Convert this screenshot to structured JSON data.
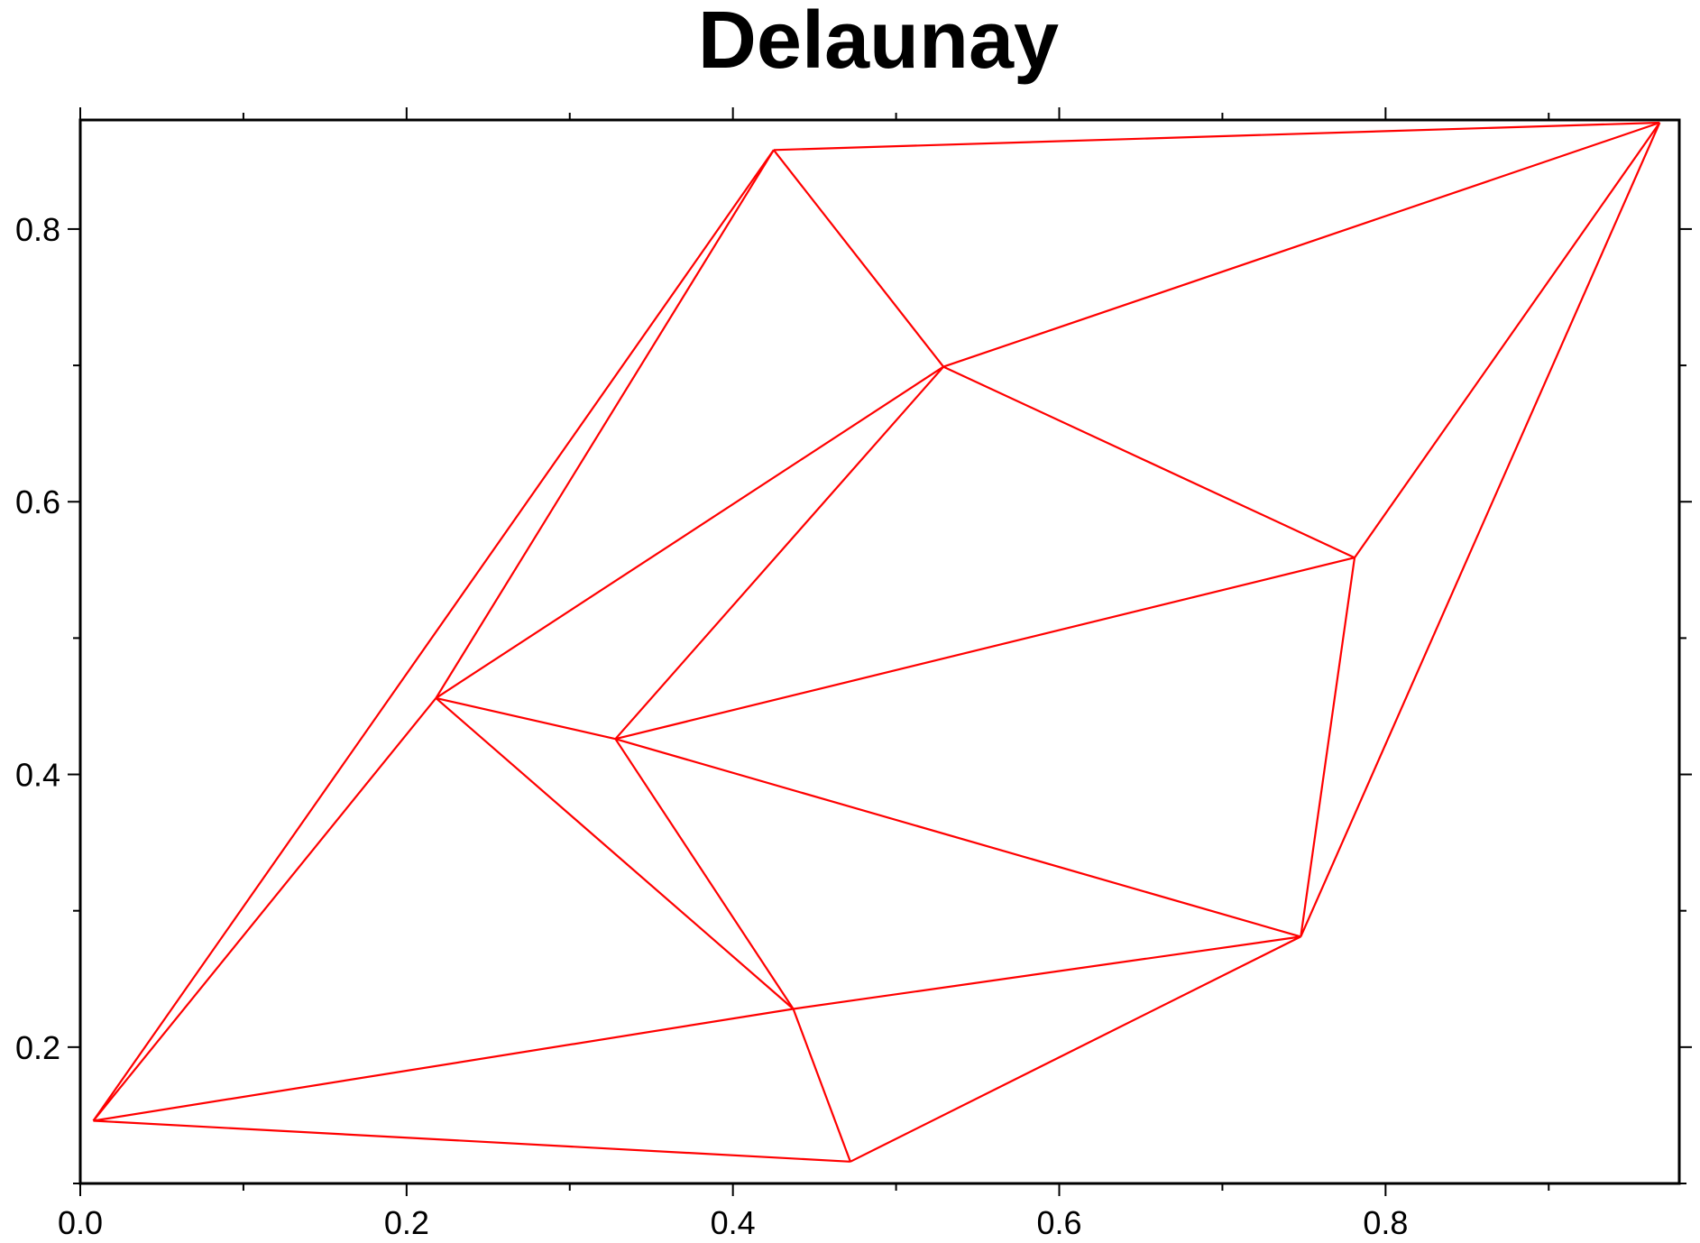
{
  "colors": {
    "edge": "#ff0000",
    "frame": "#000000",
    "background": "#ffffff"
  },
  "chart_data": {
    "type": "scatter",
    "title": "Delaunay",
    "xlabel": "",
    "ylabel": "",
    "xlim": [
      0.0,
      0.98
    ],
    "ylim": [
      0.1,
      0.88
    ],
    "grid": false,
    "frame": "boxed",
    "x_ticks": [
      {
        "value": 0.0,
        "label": "0.0"
      },
      {
        "value": 0.2,
        "label": "0.2"
      },
      {
        "value": 0.4,
        "label": "0.4"
      },
      {
        "value": 0.6,
        "label": "0.6"
      },
      {
        "value": 0.8,
        "label": "0.8"
      }
    ],
    "x_minor_ticks": [
      0.1,
      0.3,
      0.5,
      0.7,
      0.9
    ],
    "y_ticks": [
      {
        "value": 0.2,
        "label": "0.2"
      },
      {
        "value": 0.4,
        "label": "0.4"
      },
      {
        "value": 0.6,
        "label": "0.6"
      },
      {
        "value": 0.8,
        "label": "0.8"
      }
    ],
    "y_minor_ticks": [
      0.1,
      0.3,
      0.5,
      0.7
    ],
    "points": [
      {
        "id": "A",
        "x": 0.008,
        "y": 0.146
      },
      {
        "id": "B",
        "x": 0.425,
        "y": 0.858
      },
      {
        "id": "C",
        "x": 0.968,
        "y": 0.878
      },
      {
        "id": "D",
        "x": 0.529,
        "y": 0.699
      },
      {
        "id": "E",
        "x": 0.218,
        "y": 0.456
      },
      {
        "id": "F",
        "x": 0.328,
        "y": 0.426
      },
      {
        "id": "G",
        "x": 0.781,
        "y": 0.559
      },
      {
        "id": "H",
        "x": 0.748,
        "y": 0.281
      },
      {
        "id": "I",
        "x": 0.437,
        "y": 0.228
      },
      {
        "id": "J",
        "x": 0.472,
        "y": 0.116
      }
    ],
    "edges": [
      [
        "A",
        "B"
      ],
      [
        "A",
        "E"
      ],
      [
        "A",
        "I"
      ],
      [
        "A",
        "J"
      ],
      [
        "B",
        "C"
      ],
      [
        "B",
        "E"
      ],
      [
        "B",
        "D"
      ],
      [
        "C",
        "D"
      ],
      [
        "C",
        "G"
      ],
      [
        "C",
        "H"
      ],
      [
        "D",
        "E"
      ],
      [
        "D",
        "F"
      ],
      [
        "D",
        "G"
      ],
      [
        "E",
        "F"
      ],
      [
        "E",
        "I"
      ],
      [
        "F",
        "G"
      ],
      [
        "F",
        "H"
      ],
      [
        "F",
        "I"
      ],
      [
        "G",
        "H"
      ],
      [
        "H",
        "I"
      ],
      [
        "H",
        "J"
      ],
      [
        "I",
        "J"
      ]
    ]
  }
}
